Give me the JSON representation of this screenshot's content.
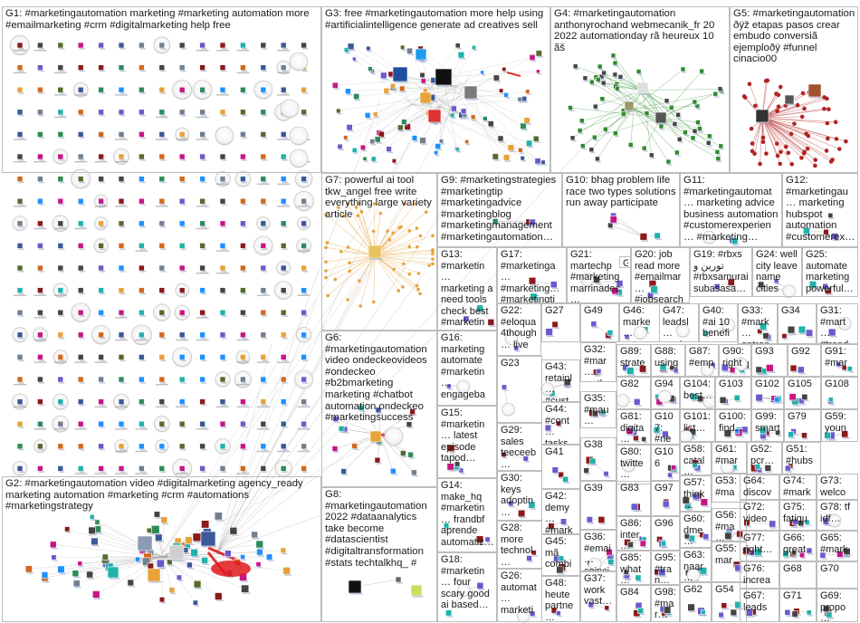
{
  "groups": [
    {
      "id": "g1",
      "label": "G1: #marketingautomation marketing #marketing automation more #emailmarketing #crm #digitalmarketing help free"
    },
    {
      "id": "g2",
      "label": "G2: #marketingautomation video #digitalmarketing agency_ready marketing automation #marketing #crm #automations #marketingstrategy"
    },
    {
      "id": "g3",
      "label": "G3: free #marketingautomation more help using #artificialintelligence generate ad creatives sell"
    },
    {
      "id": "g4",
      "label": "G4: #marketingautomation anthonyrochand webmecanik_fr 20 2022 automationday rã heureux 10 ãš"
    },
    {
      "id": "g5",
      "label": "G5: #marketingautomation ðÿž etapas pasos crear embudo conversiã ejemploðÿ #funnel cinacio00"
    },
    {
      "id": "g6",
      "label": "G6: #marketingautomation video ondeckeovideos #ondeckeo #b2bmarketing marketing #chatbot automation ondeckeo #marketingsuccess"
    },
    {
      "id": "g7",
      "label": "G7: powerful ai tool tkw_angel free write everything large variety article"
    },
    {
      "id": "g8",
      "label": "G8: #marketingautomation 2022 #dataanalytics take become #datascientist #digitaltransformation #stats techtalkhq_ #"
    },
    {
      "id": "g9",
      "label": "G9: #marketingstrategies #marketingtip #marketingadvice #marketingblog #marketingmanagement #marketingautomation…"
    },
    {
      "id": "g10",
      "label": "G10: bhag problem life race two types solutions run away participate"
    },
    {
      "id": "g11",
      "label": "G11: #marketingautomat… marketing advice business automation #customerexperien… #marketing…"
    },
    {
      "id": "g12",
      "label": "G12: #marketingau… marketing hubspot automation #customerex…"
    },
    {
      "id": "g13",
      "label": "G13: #marketin… marketing a need tools check best #marketin…"
    },
    {
      "id": "g14",
      "label": "G14: make_hq #marketin… frandbf aprende automatiz…"
    },
    {
      "id": "g15",
      "label": "G15: #marketin… latest episode tapod…"
    },
    {
      "id": "g16",
      "label": "G16: marketing automate #marketin… engageba…"
    },
    {
      "id": "g17",
      "label": "G17: #marketinga… #marketing… #marketingti…"
    },
    {
      "id": "g18",
      "label": "G18: #marketin… four scary good ai based…"
    },
    {
      "id": "g19",
      "label": "G19: #rbxs تورين و #rbxsamurai subasasa…"
    },
    {
      "id": "g20",
      "label": "G20: job read more #emailmar… #jobsearch…"
    },
    {
      "id": "g21",
      "label": "G21: martechp #marketing marrinadec…"
    },
    {
      "id": "g22",
      "label": "G22: #eloqua 4though… live"
    },
    {
      "id": "g23",
      "label": "G23"
    },
    {
      "id": "g24",
      "label": "G24: well city leave name cities"
    },
    {
      "id": "g25",
      "label": "G25: automate marketing powerful…"
    },
    {
      "id": "g26",
      "label": "G26: automat… marketi…"
    },
    {
      "id": "g27",
      "label": "G27"
    },
    {
      "id": "g28",
      "label": "G28: more technol…"
    },
    {
      "id": "g29",
      "label": "G29: sales teeceeb…"
    },
    {
      "id": "g30",
      "label": "G30: keys adoptin…"
    },
    {
      "id": "g31",
      "label": "G31: #mart… #trend…"
    },
    {
      "id": "g32",
      "label": "G32: #mar… myths…"
    },
    {
      "id": "g33",
      "label": "G33: #mark… entrep…"
    },
    {
      "id": "g34",
      "label": "G34"
    },
    {
      "id": "g35",
      "label": "G35: #mau… mauv…"
    },
    {
      "id": "g36",
      "label": "G36: #emai… coinci…"
    },
    {
      "id": "g37",
      "label": "G37: work vast…"
    },
    {
      "id": "g38",
      "label": "G38"
    },
    {
      "id": "g39",
      "label": "G39"
    },
    {
      "id": "g40",
      "label": "G40: #ai 10 benefi…"
    },
    {
      "id": "g41",
      "label": "G41"
    },
    {
      "id": "g42",
      "label": "G42: demy… #mark…"
    },
    {
      "id": "g43",
      "label": "G43: retainl… #cust…"
    },
    {
      "id": "g44",
      "label": "G44: #cont… tasks…"
    },
    {
      "id": "g45",
      "label": "G45: mã combi…"
    },
    {
      "id": "g46",
      "label": "G46: marke… autom…"
    },
    {
      "id": "g47",
      "label": "G47: leadsl… market…"
    },
    {
      "id": "g48",
      "label": "G48: heute partne…"
    },
    {
      "id": "g49",
      "label": "G49"
    },
    {
      "id": "g50",
      "label": "G50"
    },
    {
      "id": "g51",
      "label": "G51: #hubs…"
    },
    {
      "id": "g52",
      "label": "G52: pcr…"
    },
    {
      "id": "g53",
      "label": "G53: #ma…"
    },
    {
      "id": "g54",
      "label": "G54"
    },
    {
      "id": "g55",
      "label": "G55: mar…"
    },
    {
      "id": "g56",
      "label": "G56: #ma…"
    },
    {
      "id": "g57",
      "label": "G57: think…"
    },
    {
      "id": "g58",
      "label": "G58: catal…"
    },
    {
      "id": "g59",
      "label": "G59: youn…"
    },
    {
      "id": "g60",
      "label": "G60: dme…"
    },
    {
      "id": "g61",
      "label": "G61: #mar…"
    },
    {
      "id": "g62",
      "label": "G62"
    },
    {
      "id": "g63",
      "label": "G63: naar…"
    },
    {
      "id": "g64",
      "label": "G64: discov…"
    },
    {
      "id": "g65",
      "label": "G65: #mark…"
    },
    {
      "id": "g66",
      "label": "G66: great"
    },
    {
      "id": "g67",
      "label": "G67: leads"
    },
    {
      "id": "g68",
      "label": "G68"
    },
    {
      "id": "g69",
      "label": "G69: propo…"
    },
    {
      "id": "g70",
      "label": "G70"
    },
    {
      "id": "g71",
      "label": "G71"
    },
    {
      "id": "g72",
      "label": "G72: video…"
    },
    {
      "id": "g73",
      "label": "G73: welco…"
    },
    {
      "id": "g74",
      "label": "G74: #mark…"
    },
    {
      "id": "g75",
      "label": "G75: fatigu…"
    },
    {
      "id": "g76",
      "label": "G76: increa…"
    },
    {
      "id": "g77",
      "label": "G77: right…"
    },
    {
      "id": "g78",
      "label": "G78: tf idf…"
    },
    {
      "id": "g79",
      "label": "G79"
    },
    {
      "id": "g80",
      "label": "G80: twitte…"
    },
    {
      "id": "g81",
      "label": "G81: digita…"
    },
    {
      "id": "g82",
      "label": "G82"
    },
    {
      "id": "g83",
      "label": "G83"
    },
    {
      "id": "g84",
      "label": "G84"
    },
    {
      "id": "g85",
      "label": "G85: what…"
    },
    {
      "id": "g86",
      "label": "G86: inter…"
    },
    {
      "id": "g87",
      "label": "G87: #emp…"
    },
    {
      "id": "g88",
      "label": "G88: using…"
    },
    {
      "id": "g89",
      "label": "G89: strate…"
    },
    {
      "id": "g90",
      "label": "G90: right…"
    },
    {
      "id": "g91",
      "label": "G91: #mar…"
    },
    {
      "id": "g92",
      "label": "G92"
    },
    {
      "id": "g93",
      "label": "G93"
    },
    {
      "id": "g94",
      "label": "G94"
    },
    {
      "id": "g95",
      "label": "G95: #tran…"
    },
    {
      "id": "g96",
      "label": "G96"
    },
    {
      "id": "g97",
      "label": "G97"
    },
    {
      "id": "g98",
      "label": "G98: #mar…"
    },
    {
      "id": "g99",
      "label": "G99: smart…"
    },
    {
      "id": "g100",
      "label": "G100: find…"
    },
    {
      "id": "g101",
      "label": "G101: list…"
    },
    {
      "id": "g102",
      "label": "G102"
    },
    {
      "id": "g103",
      "label": "G103"
    },
    {
      "id": "g104",
      "label": "G104: best…"
    },
    {
      "id": "g105",
      "label": "G105"
    },
    {
      "id": "g106",
      "label": "G106"
    },
    {
      "id": "g107",
      "label": "G107: #ne…"
    },
    {
      "id": "g108",
      "label": "G108"
    }
  ],
  "colors": {
    "border": "#bdbdbd",
    "edge": "#9a9a9a",
    "node_ring": "#c8c8c8",
    "hub_red": "#e0191c",
    "g5_red": "#b22222",
    "g4_green": "#2e8b2e",
    "g3_blue": "#1e4fa0",
    "g7_orange": "#e8a23a"
  }
}
